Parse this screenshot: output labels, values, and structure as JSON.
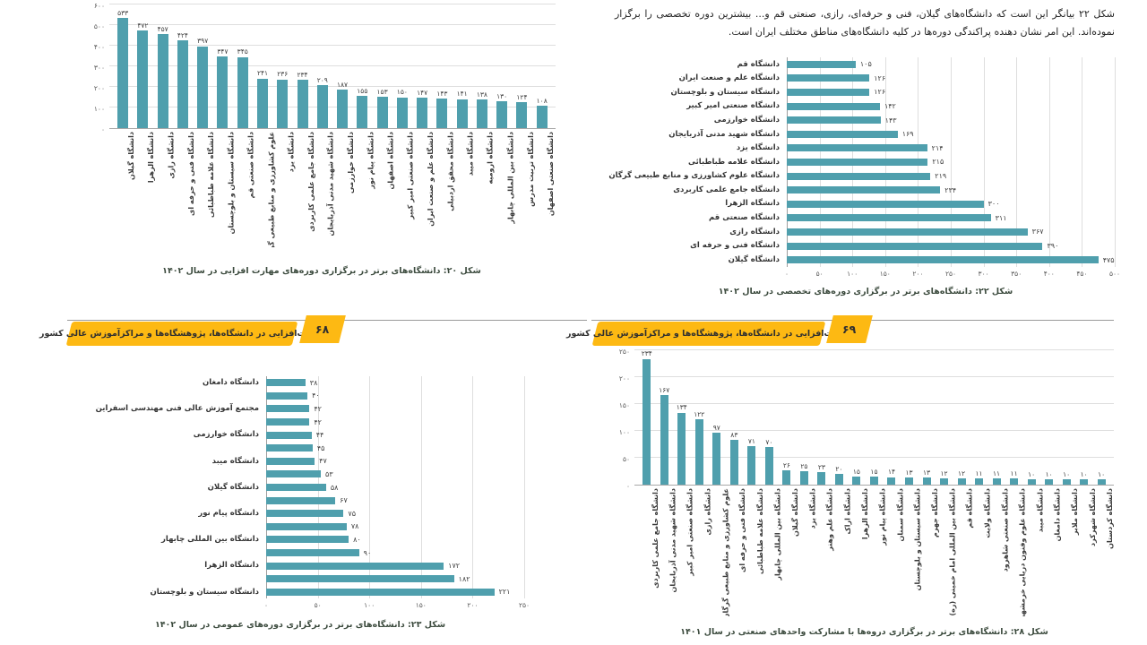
{
  "colors": {
    "bar": "#4f9fad",
    "banner": "#fdb913",
    "caption_text": "#3c4b3e",
    "grid": "#dedede"
  },
  "left_page": {
    "banner": {
      "text": "مهارت‌افزایی در دانشگاه‌ها، پژوهشگاه‌ها و مراکزآموزش عالی کشور",
      "page_number": "۶۸"
    }
  },
  "right_page": {
    "intro_paragraph": "شکل ۲۲ بیانگر این است که دانشگاه‌های گیلان، فنی و حرفه‌ای، رازی، صنعتی قم و... بیشترین دوره تخصصی را برگزار نموده‌اند. این امر نشان دهنده پراکندگی دوره‌ها در کلیه دانشگاه‌های مناطق مختلف ایران است.",
    "banner": {
      "text": "مهارت‌افزایی در دانشگاه‌ها، پژوهشگاه‌ها و مراکزآموزش عالی کشور",
      "page_number": "۶۹"
    }
  },
  "chart_data": [
    {
      "id": "figure-20",
      "type": "bar",
      "orientation": "vertical",
      "caption": "شکل ۲۰: دانشگاه‌های برتر در برگزاری دوره‌های مهارت افزایی در سال ۱۴۰۲",
      "categories": [
        "دانشگاه گیلان",
        "دانشگاه الزهرا",
        "دانشگاه رازی",
        "دانشگاه فنی و حرفه ای",
        "دانشگاه علامه طباطبائی",
        "دانشگاه سیستان و بلوچستان",
        "دانشگاه صنعتی قم",
        "علوم کشاورزی و منابع طبیعی گرگان",
        "دانشگاه یزد",
        "دانشگاه جامع علمی کاربردی",
        "دانشگاه شهید مدنی آذربایجان",
        "دانشگاه خوارزمی",
        "دانشگاه پیام نور",
        "دانشگاه اصفهان",
        "دانشگاه صنعتی امیر کبیر",
        "دانشگاه علم و صنعت ایران",
        "دانشگاه محقق اردبیلی",
        "دانشگاه میبد",
        "دانشگاه ارومیه",
        "دانشگاه بین المللی چابهار",
        "دانشگاه تربیت مدرس",
        "دانشگاه صنعتی اصفهان"
      ],
      "values": [
        533,
        472,
        457,
        424,
        397,
        347,
        345,
        241,
        236,
        234,
        209,
        187,
        155,
        153,
        150,
        147,
        143,
        141,
        138,
        130,
        124,
        108
      ],
      "ylim": [
        0,
        600
      ],
      "ticks": [
        0,
        100,
        200,
        300,
        400,
        500,
        600
      ],
      "grid": true,
      "xlabel": "",
      "ylabel": ""
    },
    {
      "id": "figure-22",
      "type": "bar",
      "orientation": "horizontal",
      "caption": "شکل ۲۲: دانشگاه‌های برتر در برگزاری دوره‌های  تخصصی در سال ۱۴۰۲",
      "categories": [
        "دانشگاه قم",
        "دانشگاه علم و صنعت ایران",
        "دانشگاه سیستان و بلوچستان",
        "دانشگاه صنعتی امیر کبیر",
        "دانشگاه خوارزمی",
        "دانشگاه شهید مدنی آذربایجان",
        "دانشگاه یزد",
        "دانشگاه علامه طباطبائی",
        "دانشگاه علوم کشاورزی و منابع طبیعی گرگان",
        "دانشگاه جامع علمی کاربردی",
        "دانشگاه الزهرا",
        "دانشگاه صنعتی قم",
        "دانشگاه رازی",
        "دانشگاه فنی و حرفه ای",
        "دانشگاه گیلان"
      ],
      "values": [
        105,
        126,
        126,
        142,
        143,
        169,
        214,
        215,
        219,
        234,
        300,
        311,
        367,
        390,
        475
      ],
      "xlim": [
        0,
        500
      ],
      "ticks": [
        0,
        50,
        100,
        150,
        200,
        250,
        300,
        350,
        400,
        450,
        500
      ],
      "grid": true,
      "xlabel": "",
      "ylabel": ""
    },
    {
      "id": "figure-23",
      "type": "bar",
      "orientation": "horizontal",
      "caption": "شکل ۲۳: دانشگاه‌های برتر در برگزاری دوره‌های عمومی در سال ۱۴۰۲",
      "categories": [
        "دانشگاه دامغان",
        "",
        "مجتمع آموزش عالی فنی مهندسی اسفراین",
        "",
        "دانشگاه خوارزمی",
        "",
        "دانشگاه میبد",
        "",
        "دانشگاه گیلان",
        "",
        "دانشگاه پیام نور",
        "",
        "دانشگاه بین المللی چابهار",
        "",
        "دانشگاه الزهرا",
        "",
        "دانشگاه سیستان و بلوچستان"
      ],
      "values": [
        38,
        40,
        42,
        42,
        44,
        45,
        47,
        53,
        58,
        67,
        75,
        78,
        80,
        90,
        172,
        182,
        221
      ],
      "xlim": [
        0,
        250
      ],
      "ticks": [
        0,
        50,
        100,
        150,
        200,
        250
      ],
      "grid": true,
      "xlabel": "",
      "ylabel": ""
    },
    {
      "id": "figure-28",
      "type": "bar",
      "orientation": "vertical",
      "caption": "شکل ۲۸: دانشگاه‌های برتر در برگزاری دروه‌ها با مشارکت واحدهای صنعتی در سال ۱۴۰۱",
      "categories": [
        "دانشگاه جامع علمی کاربردی",
        "دانشگاه شهید مدنی آذربایجان",
        "دانشگاه صنعتی امیر کبیر",
        "دانشگاه رازی",
        "علوم کشاورزی و منابع طبیعی گرگان",
        "دانشگاه فنی و حرفه ای",
        "دانشگاه علامه طباطبائی",
        "دانشگاه بین المللی چابهار",
        "دانشگاه گیلان",
        "دانشگاه یزد",
        "دانشگاه علم وهنر",
        "دانشگاه اراک",
        "دانشگاه الزهرا",
        "دانشگاه پیام نور",
        "دانشگاه سمنان",
        "دانشگاه سیستان و بلوچستان",
        "دانشگاه جهرم",
        "دانشگاه بین المللی امام خمینی (ره)",
        "دانشگاه قم",
        "دانشگاه ولایت",
        "دانشگاه صنعتی شاهرود",
        "دانشگاه علوم وفنون دریایی خرمشهر",
        "دانشگاه میبد",
        "دانشگاه دامغان",
        "دانشگاه ملایر",
        "دانشگاه شهرکرد",
        "دانشگاه کردستان"
      ],
      "values": [
        234,
        167,
        134,
        122,
        97,
        83,
        71,
        70,
        26,
        25,
        23,
        20,
        15,
        15,
        14,
        13,
        13,
        12,
        12,
        11,
        11,
        11,
        10,
        10,
        10,
        10,
        10
      ],
      "ylim": [
        0,
        250
      ],
      "ticks": [
        0,
        50,
        100,
        150,
        200,
        250
      ],
      "grid": true,
      "xlabel": "",
      "ylabel": ""
    }
  ]
}
